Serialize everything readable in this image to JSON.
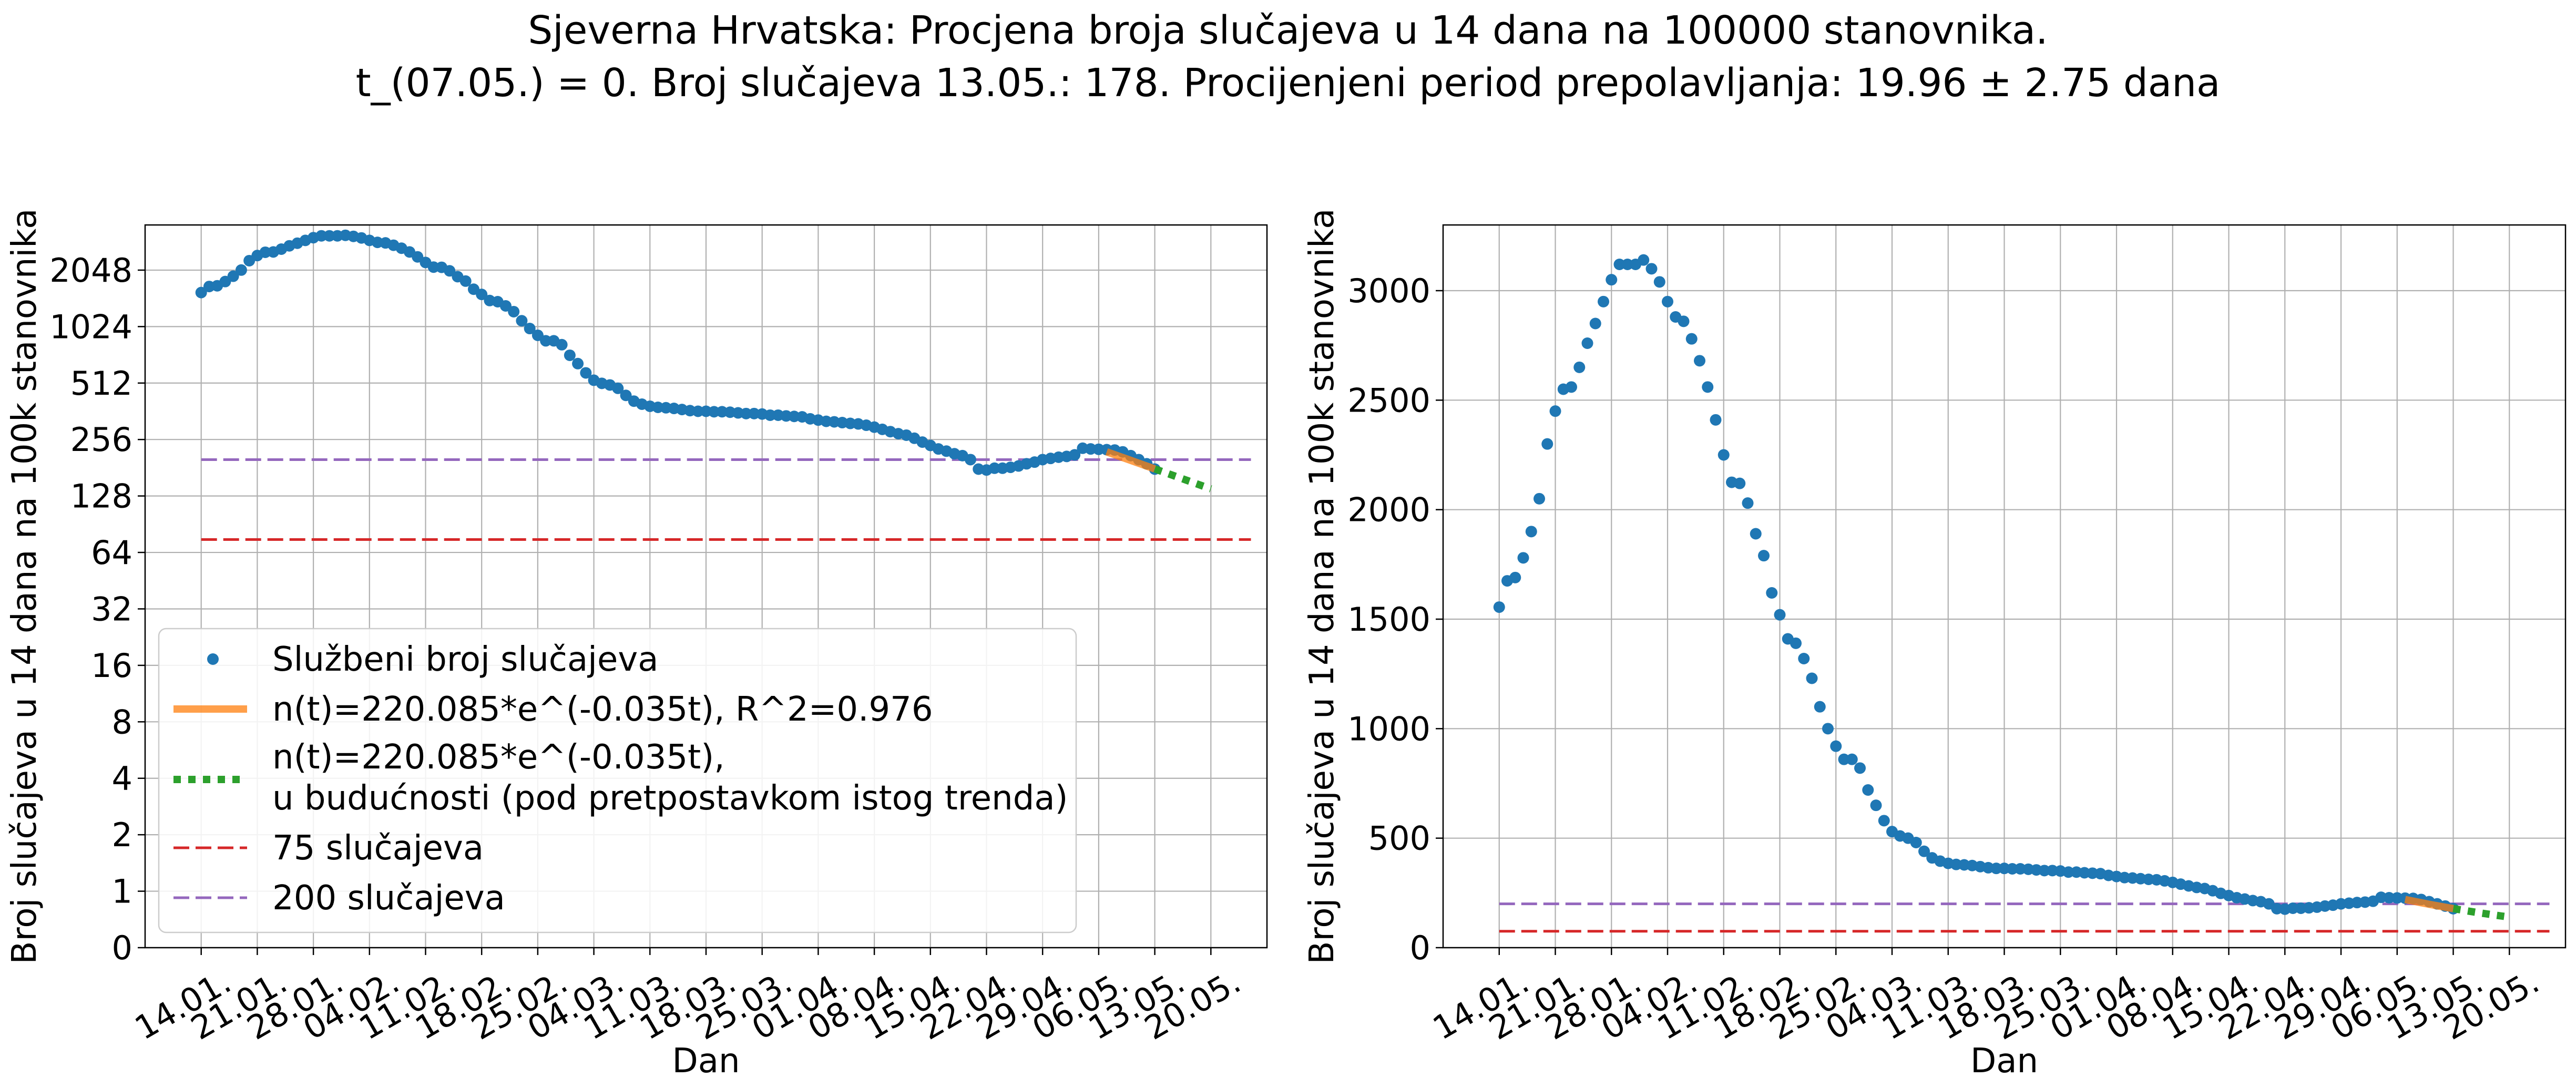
{
  "title_line1": "Sjeverna Hrvatska: Procjena broja slučajeva u 14 dana na 100000 stanovnika.",
  "title_line2": "t_(07.05.) = 0. Broj slučajeva 13.05.: 178. Procijenjeni period prepolavljanja: 19.96 ± 2.75 dana",
  "colors": {
    "official": "#1f77b4",
    "fit": "#ff7f0e",
    "forecast": "#2ca02c",
    "threshold75": "#d62728",
    "threshold200": "#9467bd",
    "grid": "#b0b0b0"
  },
  "chart_data": [
    {
      "type": "scatter",
      "panel": "left",
      "yscale": "log2",
      "xlabel": "Dan",
      "ylabel": "Broj slučajeva u 14 dana na 100k stanovnika",
      "x_tick_labels": [
        "14.01.",
        "21.01.",
        "28.01.",
        "04.02.",
        "11.02.",
        "18.02.",
        "25.02.",
        "04.03.",
        "11.03.",
        "18.03.",
        "25.03.",
        "01.04.",
        "08.04.",
        "15.04.",
        "22.04.",
        "29.04.",
        "06.05.",
        "13.05.",
        "20.05."
      ],
      "y_tick_labels": [
        "0",
        "1",
        "2",
        "4",
        "8",
        "16",
        "32",
        "64",
        "128",
        "256",
        "512",
        "1024",
        "2048"
      ],
      "grid": true,
      "legend_position": "lower-left",
      "legend": [
        "Službeni broj slučajeva",
        "n(t)=220.085*e^(-0.035t), R^2=0.976",
        "n(t)=220.085*e^(-0.035t),\nu budućnosti (pod pretpostavkom istog trenda)",
        "75 slučajeva",
        "200 slučajeva"
      ]
    },
    {
      "type": "scatter",
      "panel": "right",
      "yscale": "linear",
      "ylim": [
        0,
        3300
      ],
      "xlabel": "Dan",
      "ylabel": "Broj slučajeva u 14 dana na 100k stanovnika",
      "x_tick_labels": [
        "14.01.",
        "21.01.",
        "28.01.",
        "04.02.",
        "11.02.",
        "18.02.",
        "25.02.",
        "04.03.",
        "11.03.",
        "18.03.",
        "25.03.",
        "01.04.",
        "08.04.",
        "15.04.",
        "22.04.",
        "29.04.",
        "06.05.",
        "13.05.",
        "20.05."
      ],
      "y_tick_labels": [
        "0",
        "500",
        "1000",
        "1500",
        "2000",
        "2500",
        "3000"
      ],
      "grid": true
    }
  ],
  "series": {
    "first_date": "14.01.",
    "official_values": [
      1555,
      1675,
      1690,
      1780,
      1900,
      2050,
      2300,
      2450,
      2550,
      2560,
      2650,
      2760,
      2850,
      2950,
      3050,
      3120,
      3120,
      3120,
      3140,
      3100,
      3040,
      2950,
      2880,
      2860,
      2780,
      2680,
      2560,
      2410,
      2250,
      2125,
      2120,
      2030,
      1890,
      1790,
      1620,
      1520,
      1410,
      1390,
      1320,
      1230,
      1100,
      1000,
      920,
      860,
      860,
      820,
      720,
      650,
      580,
      530,
      510,
      500,
      480,
      440,
      410,
      395,
      385,
      380,
      378,
      375,
      370,
      365,
      362,
      362,
      360,
      360,
      358,
      355,
      352,
      352,
      350,
      345,
      345,
      342,
      340,
      338,
      330,
      325,
      320,
      318,
      315,
      312,
      310,
      305,
      298,
      290,
      282,
      275,
      270,
      260,
      248,
      238,
      228,
      222,
      215,
      210,
      200,
      178,
      176,
      180,
      180,
      182,
      185,
      190,
      194,
      200,
      203,
      206,
      208,
      212,
      230,
      228,
      227,
      226,
      225,
      220,
      210,
      200,
      190,
      178
    ],
    "fit": {
      "a": 220.085,
      "k": 0.035,
      "t0_index": 113,
      "end_index": 119
    },
    "forecast": {
      "start_index": 119,
      "end_index": 126
    },
    "thresholds": [
      75,
      200
    ]
  }
}
